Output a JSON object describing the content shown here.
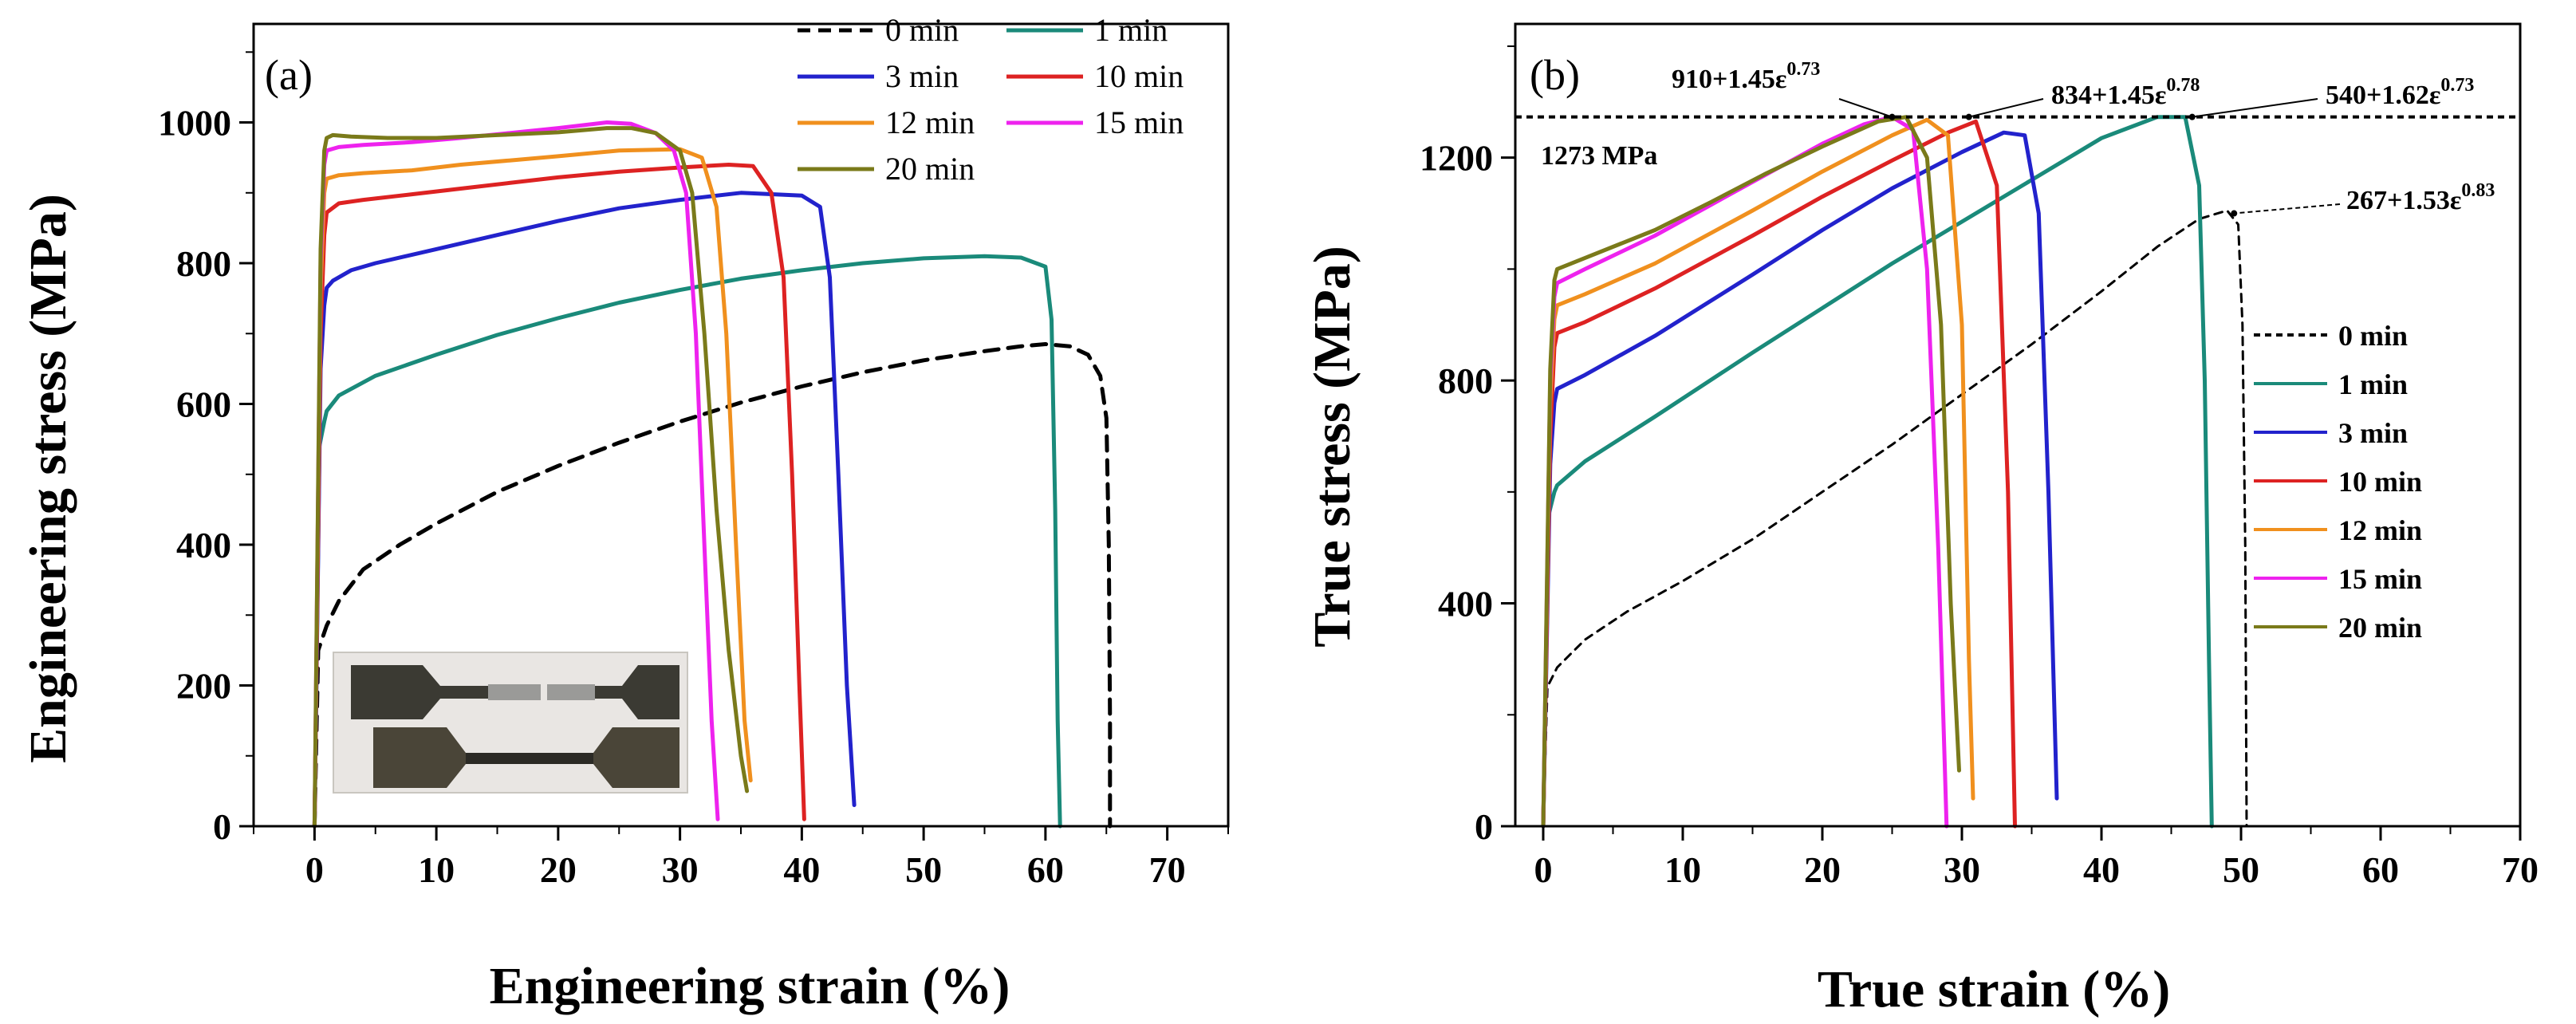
{
  "figure": {
    "colors": {
      "0 min": "#000000",
      "1 min": "#1a8a7a",
      "3 min": "#2222cc",
      "10 min": "#dd2222",
      "12 min": "#f0901e",
      "15 min": "#ee22ee",
      "20 min": "#7a7a1a"
    },
    "inset_photo_icon": "specimen-photo"
  },
  "chart_data": [
    {
      "type": "line",
      "panel_label": "(a)",
      "title": "",
      "xlabel": "Engineering strain (%)",
      "ylabel": "Engineering stress (MPa)",
      "xlim": [
        -5,
        75
      ],
      "ylim": [
        0,
        1140
      ],
      "xticks": [
        "0",
        "10",
        "20",
        "30",
        "40",
        "50",
        "60",
        "70"
      ],
      "yticks": [
        "0",
        "200",
        "400",
        "600",
        "800",
        "1000"
      ],
      "xtick_values": [
        0,
        10,
        20,
        30,
        40,
        50,
        60,
        70
      ],
      "ytick_values": [
        0,
        200,
        400,
        600,
        800,
        1000
      ],
      "legend_position": "top-right",
      "legend": [
        "0 min",
        "1 min",
        "3 min",
        "10 min",
        "12 min",
        "15 min",
        "20 min"
      ],
      "series": [
        {
          "name": "0 min",
          "dashed": true,
          "x": [
            0,
            0.3,
            1,
            2,
            4,
            7,
            10,
            15,
            20,
            25,
            30,
            35,
            40,
            45,
            50,
            55,
            58,
            60,
            62,
            63.5,
            64.5,
            65,
            65.2,
            65.3,
            65.3
          ],
          "y": [
            0,
            250,
            285,
            320,
            365,
            400,
            430,
            475,
            512,
            545,
            575,
            602,
            625,
            645,
            662,
            675,
            682,
            685,
            682,
            670,
            640,
            580,
            400,
            150,
            0
          ]
        },
        {
          "name": "1 min",
          "x": [
            0,
            0.4,
            0.8,
            1,
            2,
            5,
            10,
            15,
            20,
            25,
            30,
            35,
            40,
            45,
            50,
            55,
            58,
            60,
            60.5,
            60.8,
            61,
            61.2
          ],
          "y": [
            0,
            540,
            575,
            590,
            612,
            640,
            670,
            698,
            722,
            744,
            762,
            778,
            790,
            800,
            807,
            810,
            808,
            795,
            720,
            450,
            150,
            0
          ]
        },
        {
          "name": "3 min",
          "x": [
            0,
            0.5,
            0.8,
            1,
            1.5,
            3,
            5,
            10,
            15,
            20,
            25,
            30,
            35,
            40,
            41.5,
            42.3,
            43,
            43.7,
            44.3
          ],
          "y": [
            0,
            650,
            740,
            765,
            775,
            790,
            800,
            820,
            840,
            860,
            878,
            890,
            900,
            896,
            880,
            780,
            500,
            200,
            30
          ]
        },
        {
          "name": "10 min",
          "x": [
            0,
            0.5,
            0.8,
            1,
            2,
            4,
            8,
            12,
            16,
            20,
            25,
            30,
            34,
            36,
            37.5,
            38.5,
            39.2,
            39.8,
            40.2
          ],
          "y": [
            0,
            700,
            840,
            872,
            885,
            890,
            898,
            906,
            914,
            922,
            930,
            936,
            940,
            938,
            900,
            780,
            500,
            200,
            10
          ]
        },
        {
          "name": "12 min",
          "x": [
            0,
            0.5,
            0.8,
            1,
            2,
            4,
            8,
            12,
            16,
            20,
            25,
            30,
            31.8,
            33,
            33.8,
            34.6,
            35.3,
            35.8
          ],
          "y": [
            0,
            760,
            900,
            920,
            925,
            928,
            932,
            940,
            946,
            952,
            960,
            962,
            950,
            880,
            700,
            400,
            150,
            65
          ]
        },
        {
          "name": "15 min",
          "x": [
            0,
            0.5,
            0.8,
            1,
            2,
            4,
            8,
            12,
            16,
            20,
            24,
            26,
            28,
            29.5,
            30.5,
            31.3,
            32,
            32.6,
            33.1
          ],
          "y": [
            0,
            800,
            940,
            960,
            965,
            968,
            972,
            978,
            985,
            992,
            1000,
            998,
            985,
            960,
            900,
            700,
            400,
            150,
            10
          ]
        },
        {
          "name": "20 min",
          "x": [
            0,
            0.5,
            0.8,
            1,
            1.5,
            3,
            6,
            10,
            15,
            20,
            24,
            26,
            28,
            30,
            31,
            32,
            33,
            34,
            35,
            35.5
          ],
          "y": [
            0,
            820,
            960,
            978,
            982,
            980,
            978,
            978,
            982,
            986,
            992,
            992,
            985,
            960,
            900,
            700,
            450,
            250,
            100,
            50
          ]
        }
      ],
      "inset_photo": {
        "caption": "",
        "description_icon": "tensile-specimens"
      }
    },
    {
      "type": "line",
      "panel_label": "(b)",
      "title": "",
      "xlabel": "True strain (%)",
      "ylabel": "True stress (MPa)",
      "xlim": [
        -2,
        70
      ],
      "ylim": [
        0,
        1440
      ],
      "xticks": [
        "0",
        "10",
        "20",
        "30",
        "40",
        "50",
        "60",
        "70"
      ],
      "yticks": [
        "0",
        "400",
        "800",
        "1200"
      ],
      "xtick_values": [
        0,
        10,
        20,
        30,
        40,
        50,
        60,
        70
      ],
      "ytick_values": [
        0,
        400,
        800,
        1200
      ],
      "legend_position": "center-right",
      "legend": [
        "0 min",
        "1 min",
        "3 min",
        "10 min",
        "12 min",
        "15 min",
        "20 min"
      ],
      "reference_line": {
        "value": 1273,
        "label": "1273 MPa"
      },
      "annotations": [
        {
          "base": "910+1.45ε",
          "exp": "0.73",
          "target_x": 25,
          "target_y": 1273
        },
        {
          "base": "834+1.45ε",
          "exp": "0.78",
          "target_x": 30.5,
          "target_y": 1273
        },
        {
          "base": "540+1.62ε",
          "exp": "0.73",
          "target_x": 46.5,
          "target_y": 1273
        },
        {
          "base": "267+1.53ε",
          "exp": "0.83",
          "target_x": 49.5,
          "target_y": 1100
        }
      ],
      "series": [
        {
          "name": "0 min",
          "dashed": true,
          "x": [
            0,
            0.3,
            1,
            3,
            6,
            10,
            15,
            20,
            25,
            30,
            35,
            40,
            44,
            47,
            49,
            49.8,
            50.1,
            50.3,
            50.4
          ],
          "y": [
            0,
            250,
            285,
            335,
            385,
            440,
            515,
            600,
            685,
            775,
            865,
            960,
            1040,
            1090,
            1105,
            1080,
            900,
            500,
            0
          ]
        },
        {
          "name": "1 min",
          "x": [
            0,
            0.4,
            0.8,
            1,
            3,
            8,
            15,
            20,
            25,
            30,
            35,
            40,
            44,
            46,
            47,
            47.4,
            47.7,
            47.9
          ],
          "y": [
            0,
            560,
            600,
            612,
            655,
            735,
            850,
            930,
            1010,
            1085,
            1160,
            1235,
            1273,
            1273,
            1150,
            800,
            300,
            0
          ]
        },
        {
          "name": "3 min",
          "x": [
            0,
            0.5,
            0.8,
            1,
            3,
            8,
            15,
            20,
            25,
            30,
            33,
            34.5,
            35.5,
            36.2,
            36.8
          ],
          "y": [
            0,
            650,
            760,
            785,
            810,
            880,
            990,
            1070,
            1145,
            1210,
            1245,
            1240,
            1100,
            600,
            50
          ]
        },
        {
          "name": "10 min",
          "x": [
            0,
            0.5,
            0.8,
            1,
            3,
            8,
            15,
            20,
            25,
            29,
            31,
            32.5,
            33.3,
            33.8
          ],
          "y": [
            0,
            700,
            860,
            885,
            905,
            965,
            1060,
            1130,
            1195,
            1245,
            1265,
            1150,
            600,
            0
          ]
        },
        {
          "name": "12 min",
          "x": [
            0,
            0.5,
            0.8,
            1,
            3,
            8,
            15,
            20,
            25,
            27.5,
            29,
            30,
            30.5,
            30.8
          ],
          "y": [
            0,
            760,
            910,
            935,
            955,
            1010,
            1105,
            1175,
            1240,
            1268,
            1240,
            900,
            300,
            50
          ]
        },
        {
          "name": "15 min",
          "x": [
            0,
            0.5,
            0.8,
            1,
            3,
            8,
            12,
            16,
            20,
            23,
            25,
            26.5,
            27.5,
            28.3,
            28.9
          ],
          "y": [
            0,
            800,
            950,
            975,
            1000,
            1060,
            1115,
            1170,
            1225,
            1260,
            1273,
            1250,
            1000,
            500,
            0
          ]
        },
        {
          "name": "20 min",
          "x": [
            0,
            0.5,
            0.8,
            1,
            3,
            8,
            12,
            16,
            20,
            24,
            26,
            27.5,
            28.5,
            29.2,
            29.8
          ],
          "y": [
            0,
            820,
            980,
            1000,
            1020,
            1070,
            1120,
            1172,
            1220,
            1265,
            1273,
            1200,
            900,
            400,
            100
          ]
        }
      ]
    }
  ]
}
